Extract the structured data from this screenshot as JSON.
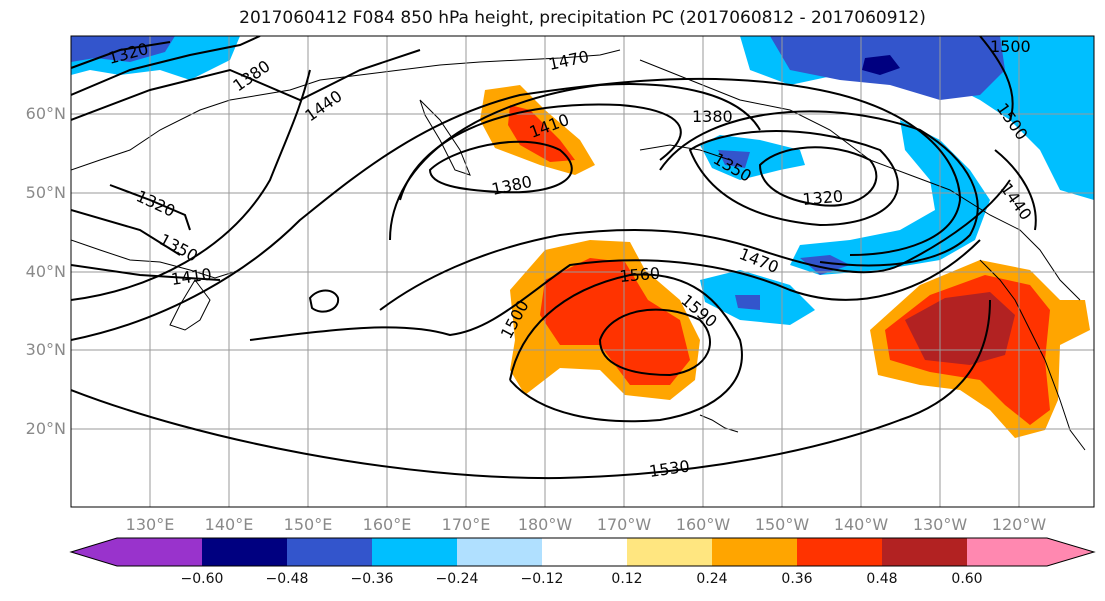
{
  "title": "2017060412 F084 850 hPa height, precipitation PC (2017060812 - 2017060912)",
  "lat_labels": [
    "60°N",
    "50°N",
    "40°N",
    "30°N",
    "20°N"
  ],
  "lon_labels": [
    "130°E",
    "140°E",
    "150°E",
    "160°E",
    "170°E",
    "180°W",
    "170°W",
    "160°W",
    "150°W",
    "140°W",
    "130°W",
    "120°W"
  ],
  "contour_labels": [
    "1320",
    "1380",
    "1440",
    "1470",
    "1410",
    "1380",
    "1380",
    "1350",
    "1320",
    "1500",
    "1500",
    "1440",
    "1320",
    "1350",
    "1410",
    "1560",
    "1470",
    "1590",
    "1500",
    "1530"
  ],
  "colorbar": {
    "colors": [
      "#9933cc",
      "#000080",
      "#3355cc",
      "#00bfff",
      "#b0e0ff",
      "#ffffff",
      "#ffe680",
      "#ffa500",
      "#ff3300",
      "#b22222",
      "#ff88b0"
    ],
    "tick_labels": [
      "−0.60",
      "−0.48",
      "−0.36",
      "−0.24",
      "−0.12",
      "0.12",
      "0.24",
      "0.36",
      "0.48",
      "0.60"
    ]
  }
}
